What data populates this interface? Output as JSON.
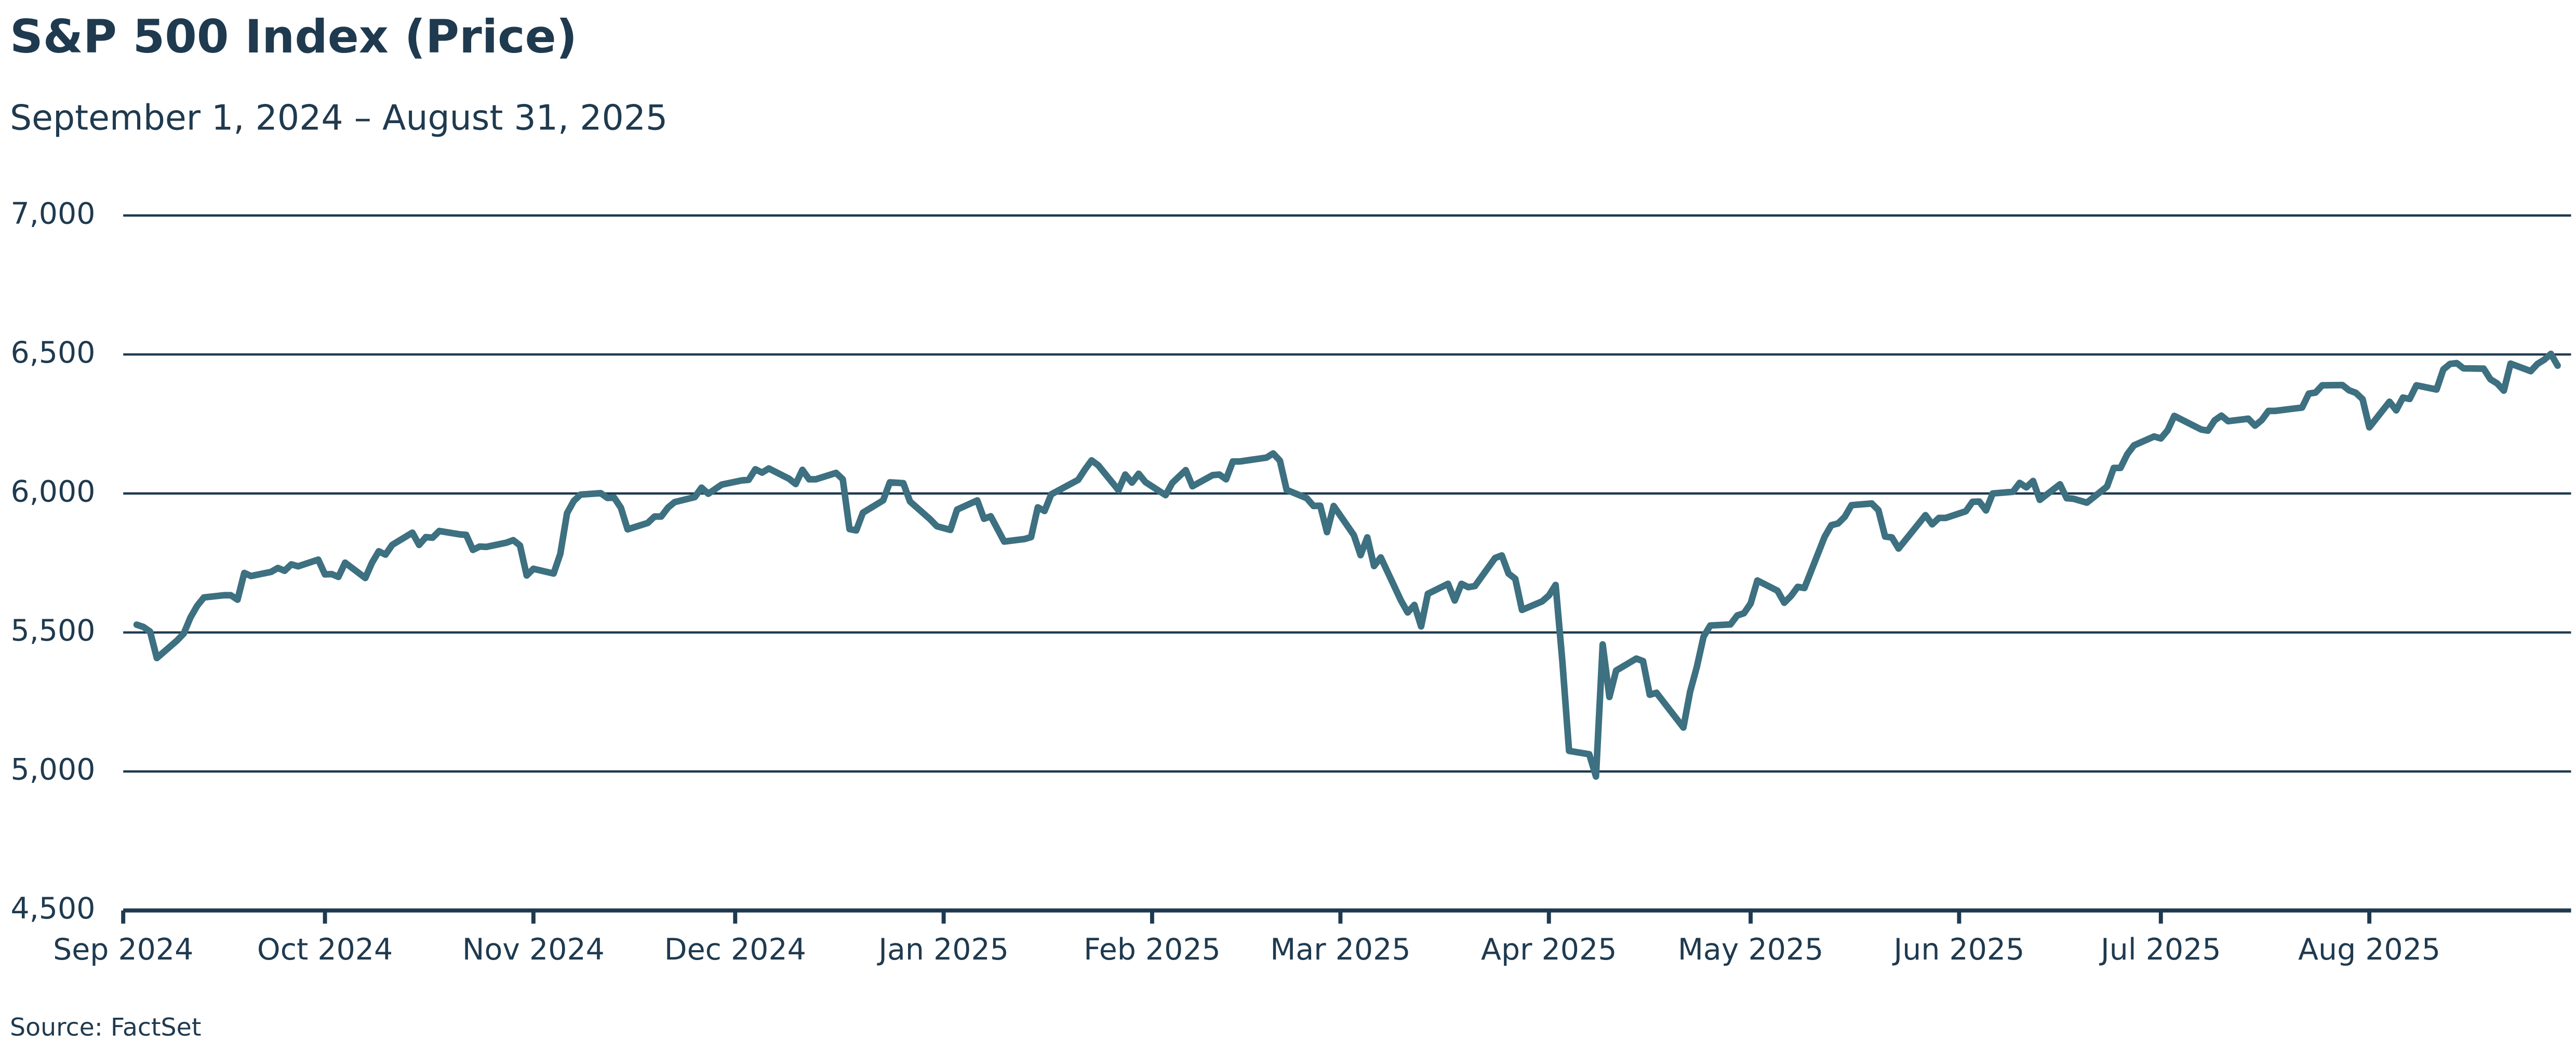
{
  "chart_data": {
    "type": "line",
    "title": "S&P 500 Index (Price)",
    "subtitle": "September 1, 2024 – August 31, 2025",
    "source": "Source: FactSet",
    "xlim": [
      "2024-09-01",
      "2025-08-31"
    ],
    "xticks": [
      {
        "value": "2024-09-01",
        "label": "Sep 2024"
      },
      {
        "value": "2024-10-01",
        "label": "Oct 2024"
      },
      {
        "value": "2024-11-01",
        "label": "Nov 2024"
      },
      {
        "value": "2024-12-01",
        "label": "Dec 2024"
      },
      {
        "value": "2025-01-01",
        "label": "Jan 2025"
      },
      {
        "value": "2025-02-01",
        "label": "Feb 2025"
      },
      {
        "value": "2025-03-01",
        "label": "Mar 2025"
      },
      {
        "value": "2025-04-01",
        "label": "Apr 2025"
      },
      {
        "value": "2025-05-01",
        "label": "May 2025"
      },
      {
        "value": "2025-06-01",
        "label": "Jun 2025"
      },
      {
        "value": "2025-07-01",
        "label": "Jul 2025"
      },
      {
        "value": "2025-08-01",
        "label": "Aug 2025"
      }
    ],
    "ylim": [
      4500,
      7000
    ],
    "yticks": [
      {
        "value": 4500,
        "label": "4,500"
      },
      {
        "value": 5000,
        "label": "5,000"
      },
      {
        "value": 5500,
        "label": "5,500"
      },
      {
        "value": 6000,
        "label": "6,000"
      },
      {
        "value": 6500,
        "label": "6,500"
      },
      {
        "value": 7000,
        "label": "7,000"
      }
    ],
    "grid": true,
    "color": "#3d7080",
    "x": [
      "2024-09-03",
      "2024-09-04",
      "2024-09-05",
      "2024-09-06",
      "2024-09-09",
      "2024-09-10",
      "2024-09-11",
      "2024-09-12",
      "2024-09-13",
      "2024-09-16",
      "2024-09-17",
      "2024-09-18",
      "2024-09-19",
      "2024-09-20",
      "2024-09-23",
      "2024-09-24",
      "2024-09-25",
      "2024-09-26",
      "2024-09-27",
      "2024-09-30",
      "2024-10-01",
      "2024-10-02",
      "2024-10-03",
      "2024-10-04",
      "2024-10-07",
      "2024-10-08",
      "2024-10-09",
      "2024-10-10",
      "2024-10-11",
      "2024-10-14",
      "2024-10-15",
      "2024-10-16",
      "2024-10-17",
      "2024-10-18",
      "2024-10-21",
      "2024-10-22",
      "2024-10-23",
      "2024-10-24",
      "2024-10-25",
      "2024-10-28",
      "2024-10-29",
      "2024-10-30",
      "2024-10-31",
      "2024-11-01",
      "2024-11-04",
      "2024-11-05",
      "2024-11-06",
      "2024-11-07",
      "2024-11-08",
      "2024-11-11",
      "2024-11-12",
      "2024-11-13",
      "2024-11-14",
      "2024-11-15",
      "2024-11-18",
      "2024-11-19",
      "2024-11-20",
      "2024-11-21",
      "2024-11-22",
      "2024-11-25",
      "2024-11-26",
      "2024-11-27",
      "2024-11-29",
      "2024-12-02",
      "2024-12-03",
      "2024-12-04",
      "2024-12-05",
      "2024-12-06",
      "2024-12-09",
      "2024-12-10",
      "2024-12-11",
      "2024-12-12",
      "2024-12-13",
      "2024-12-16",
      "2024-12-17",
      "2024-12-18",
      "2024-12-19",
      "2024-12-20",
      "2024-12-23",
      "2024-12-24",
      "2024-12-26",
      "2024-12-27",
      "2024-12-30",
      "2024-12-31",
      "2025-01-02",
      "2025-01-03",
      "2025-01-06",
      "2025-01-07",
      "2025-01-08",
      "2025-01-10",
      "2025-01-13",
      "2025-01-14",
      "2025-01-15",
      "2025-01-16",
      "2025-01-17",
      "2025-01-21",
      "2025-01-22",
      "2025-01-23",
      "2025-01-24",
      "2025-01-27",
      "2025-01-28",
      "2025-01-29",
      "2025-01-30",
      "2025-01-31",
      "2025-02-03",
      "2025-02-04",
      "2025-02-05",
      "2025-02-06",
      "2025-02-07",
      "2025-02-10",
      "2025-02-11",
      "2025-02-12",
      "2025-02-13",
      "2025-02-14",
      "2025-02-18",
      "2025-02-19",
      "2025-02-20",
      "2025-02-21",
      "2025-02-24",
      "2025-02-25",
      "2025-02-26",
      "2025-02-27",
      "2025-02-28",
      "2025-03-03",
      "2025-03-04",
      "2025-03-05",
      "2025-03-06",
      "2025-03-07",
      "2025-03-10",
      "2025-03-11",
      "2025-03-12",
      "2025-03-13",
      "2025-03-14",
      "2025-03-17",
      "2025-03-18",
      "2025-03-19",
      "2025-03-20",
      "2025-03-21",
      "2025-03-24",
      "2025-03-25",
      "2025-03-26",
      "2025-03-27",
      "2025-03-28",
      "2025-03-31",
      "2025-04-01",
      "2025-04-02",
      "2025-04-03",
      "2025-04-04",
      "2025-04-07",
      "2025-04-08",
      "2025-04-09",
      "2025-04-10",
      "2025-04-11",
      "2025-04-14",
      "2025-04-15",
      "2025-04-16",
      "2025-04-17",
      "2025-04-21",
      "2025-04-22",
      "2025-04-23",
      "2025-04-24",
      "2025-04-25",
      "2025-04-28",
      "2025-04-29",
      "2025-04-30",
      "2025-05-01",
      "2025-05-02",
      "2025-05-05",
      "2025-05-06",
      "2025-05-07",
      "2025-05-08",
      "2025-05-09",
      "2025-05-12",
      "2025-05-13",
      "2025-05-14",
      "2025-05-15",
      "2025-05-16",
      "2025-05-19",
      "2025-05-20",
      "2025-05-21",
      "2025-05-22",
      "2025-05-23",
      "2025-05-27",
      "2025-05-28",
      "2025-05-29",
      "2025-05-30",
      "2025-06-02",
      "2025-06-03",
      "2025-06-04",
      "2025-06-05",
      "2025-06-06",
      "2025-06-09",
      "2025-06-10",
      "2025-06-11",
      "2025-06-12",
      "2025-06-13",
      "2025-06-16",
      "2025-06-17",
      "2025-06-18",
      "2025-06-20",
      "2025-06-23",
      "2025-06-24",
      "2025-06-25",
      "2025-06-26",
      "2025-06-27",
      "2025-06-30",
      "2025-07-01",
      "2025-07-02",
      "2025-07-03",
      "2025-07-07",
      "2025-07-08",
      "2025-07-09",
      "2025-07-10",
      "2025-07-11",
      "2025-07-14",
      "2025-07-15",
      "2025-07-16",
      "2025-07-17",
      "2025-07-18",
      "2025-07-21",
      "2025-07-22",
      "2025-07-23",
      "2025-07-24",
      "2025-07-25",
      "2025-07-28",
      "2025-07-29",
      "2025-07-30",
      "2025-07-31",
      "2025-08-01",
      "2025-08-04",
      "2025-08-05",
      "2025-08-06",
      "2025-08-07",
      "2025-08-08",
      "2025-08-11",
      "2025-08-12",
      "2025-08-13",
      "2025-08-14",
      "2025-08-15",
      "2025-08-18",
      "2025-08-19",
      "2025-08-20",
      "2025-08-21",
      "2025-08-22",
      "2025-08-25",
      "2025-08-26",
      "2025-08-27",
      "2025-08-28",
      "2025-08-29"
    ],
    "values": [
      5528,
      5520,
      5503,
      5408,
      5471,
      5496,
      5554,
      5596,
      5626,
      5634,
      5634,
      5618,
      5714,
      5703,
      5718,
      5732,
      5722,
      5745,
      5738,
      5762,
      5709,
      5710,
      5700,
      5751,
      5696,
      5751,
      5792,
      5780,
      5815,
      5859,
      5815,
      5843,
      5841,
      5865,
      5853,
      5851,
      5797,
      5809,
      5808,
      5823,
      5832,
      5813,
      5705,
      5729,
      5712,
      5783,
      5929,
      5973,
      5996,
      6001,
      5984,
      5985,
      5949,
      5871,
      5894,
      5917,
      5917,
      5949,
      5969,
      5987,
      6021,
      5999,
      6032,
      6047,
      6049,
      6087,
      6075,
      6090,
      6053,
      6034,
      6085,
      6051,
      6051,
      6074,
      6051,
      5872,
      5867,
      5931,
      5975,
      6040,
      6037,
      5971,
      5907,
      5882,
      5869,
      5942,
      5975,
      5909,
      5918,
      5827,
      5836,
      5843,
      5950,
      5937,
      5997,
      6049,
      6086,
      6119,
      6101,
      6012,
      6068,
      6039,
      6071,
      6041,
      5994,
      6038,
      6061,
      6084,
      6026,
      6066,
      6068,
      6051,
      6115,
      6115,
      6129,
      6144,
      6118,
      6013,
      5983,
      5955,
      5956,
      5861,
      5955,
      5850,
      5778,
      5842,
      5739,
      5770,
      5615,
      5572,
      5599,
      5522,
      5639,
      5675,
      5615,
      5675,
      5663,
      5667,
      5768,
      5777,
      5712,
      5693,
      5581,
      5612,
      5633,
      5671,
      5397,
      5074,
      5062,
      4982,
      5457,
      5268,
      5363,
      5406,
      5397,
      5276,
      5283,
      5158,
      5287,
      5376,
      5485,
      5525,
      5529,
      5561,
      5569,
      5604,
      5687,
      5650,
      5607,
      5631,
      5664,
      5660,
      5844,
      5886,
      5892,
      5916,
      5958,
      5964,
      5940,
      5845,
      5842,
      5802,
      5922,
      5889,
      5912,
      5912,
      5936,
      5970,
      5971,
      5939,
      6000,
      6006,
      6038,
      6022,
      6045,
      5977,
      6033,
      5983,
      5981,
      5967,
      6025,
      6092,
      6092,
      6141,
      6173,
      6205,
      6198,
      6227,
      6279,
      6230,
      6226,
      6263,
      6280,
      6260,
      6269,
      6244,
      6264,
      6297,
      6297,
      6306,
      6309,
      6359,
      6363,
      6389,
      6390,
      6371,
      6362,
      6339,
      6238,
      6330,
      6299,
      6345,
      6340,
      6389,
      6374,
      6446,
      6466,
      6469,
      6450,
      6449,
      6411,
      6396,
      6370,
      6467,
      6440,
      6466,
      6481,
      6502,
      6460
    ]
  }
}
